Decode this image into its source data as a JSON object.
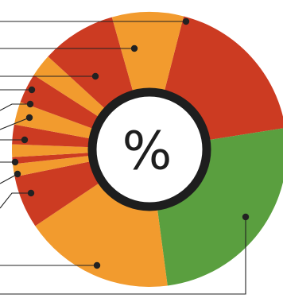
{
  "center_symbol": "%",
  "colors": {
    "red": "#cc3b22",
    "orange": "#f29b2e",
    "green": "#5a9f3f",
    "ring": "#1e1e1e",
    "leader": "#222222"
  },
  "chart_data": {
    "type": "pie",
    "style": "donut with leader lines, no text labels",
    "slices": [
      {
        "color": "red",
        "share": 18.5
      },
      {
        "color": "green",
        "share": 25.4
      },
      {
        "color": "orange",
        "share": 17.7
      },
      {
        "color": "red",
        "share": 6.2
      },
      {
        "color": "orange",
        "share": 1.5
      },
      {
        "color": "red",
        "share": 0.8
      },
      {
        "color": "orange",
        "share": 1.5
      },
      {
        "color": "red",
        "share": 2.3
      },
      {
        "color": "orange",
        "share": 2.7
      },
      {
        "color": "red",
        "share": 3.5
      },
      {
        "color": "orange",
        "share": 2.7
      },
      {
        "color": "red",
        "share": 8.8
      },
      {
        "color": "orange",
        "share": 8.4
      }
    ]
  }
}
